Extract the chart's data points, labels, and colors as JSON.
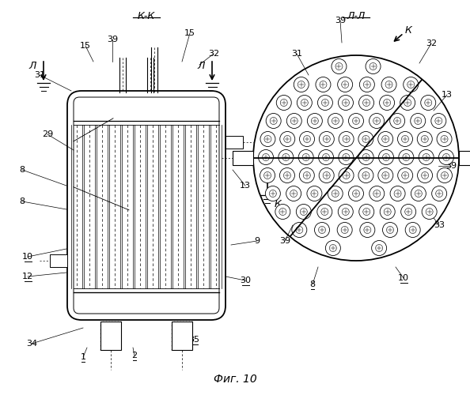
{
  "bg_color": "#ffffff",
  "line_color": "#000000",
  "fig_caption": "Фиг. 10",
  "left_label": "К-К",
  "right_label": "Л-Л"
}
